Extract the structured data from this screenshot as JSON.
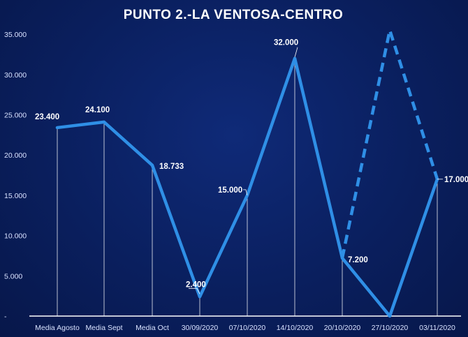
{
  "chart_data": {
    "type": "line",
    "title": "PUNTO 2.-LA VENTOSA-CENTRO",
    "xlabel": "",
    "ylabel": "",
    "categories": [
      "Media Agosto",
      "Media Sept",
      "Media Oct",
      "30/09/2020",
      "07/10/2020",
      "14/10/2020",
      "20/10/2020",
      "27/10/2020",
      "03/11/2020"
    ],
    "series": [
      {
        "values": [
          23400,
          24100,
          18733,
          2400,
          15000,
          32000,
          7200,
          0,
          17000
        ],
        "style": "solid",
        "color": "#2f8fe6"
      },
      {
        "x": [
          "20/10/2020",
          "27/10/2020",
          "03/11/2020"
        ],
        "values": [
          7200,
          35500,
          17000
        ],
        "style": "dashed",
        "color": "#2f8fe6"
      }
    ],
    "data_labels": [
      {
        "category": "Media Agosto",
        "text": "23.400"
      },
      {
        "category": "Media Sept",
        "text": "24.100"
      },
      {
        "category": "Media Oct",
        "text": "18.733"
      },
      {
        "category": "30/09/2020",
        "text": "2.400"
      },
      {
        "category": "07/10/2020",
        "text": "15.000"
      },
      {
        "category": "14/10/2020",
        "text": "32.000"
      },
      {
        "category": "20/10/2020",
        "text": "7.200"
      },
      {
        "category": "03/11/2020",
        "text": "17.000"
      }
    ],
    "yticks": [
      {
        "value": 0,
        "label": "-"
      },
      {
        "value": 5000,
        "label": "5.000"
      },
      {
        "value": 10000,
        "label": "10.000"
      },
      {
        "value": 15000,
        "label": "15.000"
      },
      {
        "value": 20000,
        "label": "20.000"
      },
      {
        "value": 25000,
        "label": "25.000"
      },
      {
        "value": 30000,
        "label": "30.000"
      },
      {
        "value": 35000,
        "label": "35.000"
      }
    ],
    "ylim": [
      0,
      37000
    ],
    "grid": false,
    "drop_lines": true,
    "background_color": "#0a1f5e"
  }
}
